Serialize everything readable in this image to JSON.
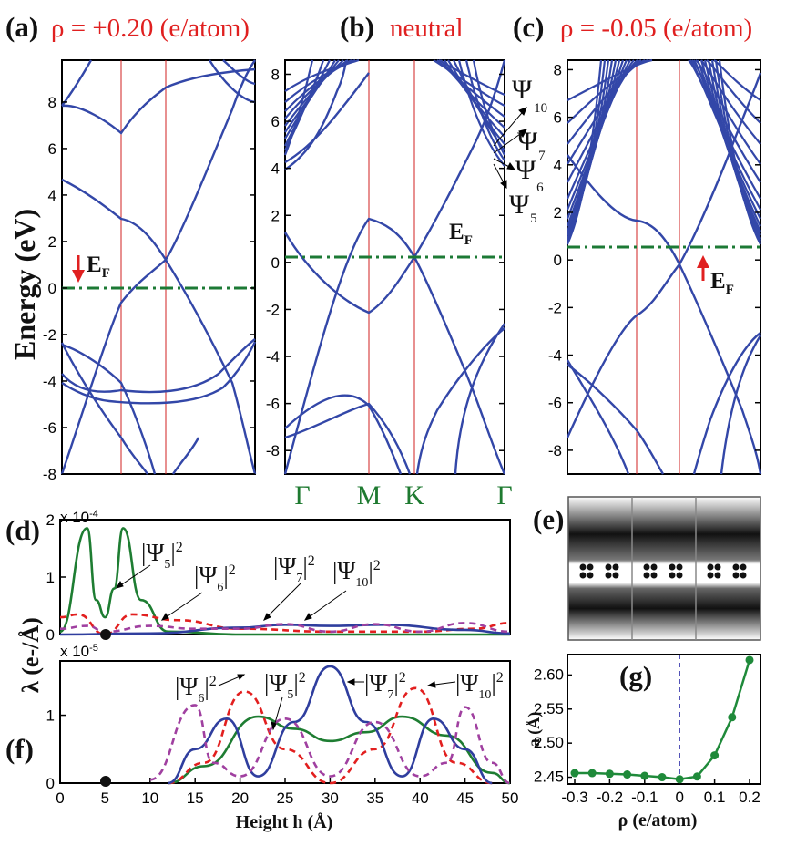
{
  "figure": {
    "panel_a_letter": "(a)",
    "panel_a_condition": "ρ = +0.20 (e/atom)",
    "panel_b_letter": "(b)",
    "panel_b_condition": "neutral",
    "panel_c_letter": "(c)",
    "panel_c_condition": "ρ = -0.05 (e/atom)",
    "panel_d_letter": "(d)",
    "panel_e_letter": "(e)",
    "panel_f_letter": "(f)",
    "panel_g_letter": "(g)",
    "energy_ylabel": "Energy (eV)",
    "lambda_ylabel": "λ (e-/Å)",
    "height_xlabel": "Height h (Å)",
    "rho_xlabel": "ρ (e/atom)",
    "lattice_ylabel": "a (Å)",
    "ef": "E",
    "ef_sub": "F",
    "d_scale_base": "x 10",
    "d_scale_exp": "-4",
    "f_scale_base": "x 10",
    "f_scale_exp": "-5",
    "kpoints": [
      "Γ",
      "M",
      "K",
      "Γ"
    ],
    "psi": "Ψ",
    "psi_subs": [
      "10",
      "7",
      "6",
      "5"
    ],
    "psi_tags": [
      "|Ψ5|2",
      "|Ψ6|2",
      "|Ψ7|2",
      "|Ψ10|2"
    ]
  },
  "chart_data": [
    {
      "type": "line",
      "panel": "a",
      "title": "ρ = +0.20 (e/atom)",
      "ylabel": "Energy (eV)",
      "ylim": [
        -8,
        9.8
      ],
      "yticks": [
        -8,
        -6,
        -4,
        -2,
        0,
        2,
        4,
        6,
        8
      ],
      "fermi_level": 0,
      "series": [
        {
          "values": "electronic bands Γ-M-K-Γ; Dirac point at K ≈ 1.3 eV; bands at M ≈ 3.0, -0.6 eV"
        }
      ]
    },
    {
      "type": "line",
      "panel": "b",
      "title": "neutral",
      "ylabel": "Energy (eV)",
      "ylim": [
        -9,
        8.6
      ],
      "yticks": [
        -8,
        -6,
        -4,
        -2,
        0,
        2,
        4,
        6,
        8
      ],
      "xticklabels": [
        "Γ",
        "M",
        "K",
        "Γ"
      ],
      "fermi_level": 0,
      "series": [
        {
          "values": "Dirac point at K = 0 eV; M points 1.7, -2.4 eV; nearly-free-electron states Ψ5, Ψ6, Ψ7, Ψ10 ≈ 3.4–4.6 eV at Γ"
        }
      ]
    },
    {
      "type": "line",
      "panel": "c",
      "title": "ρ = -0.05 (e/atom)",
      "ylabel": "Energy (eV)",
      "ylim": [
        -9,
        8.4
      ],
      "yticks": [
        -8,
        -6,
        -4,
        -2,
        0,
        2,
        4,
        6,
        8
      ],
      "fermi_level": 0,
      "series": [
        {
          "values": "Dirac point at K ≈ -0.6 eV; dense band bundle above 0 eV at Γ"
        }
      ]
    },
    {
      "type": "line",
      "panel": "d",
      "xlim": [
        0,
        50
      ],
      "ylim": [
        0,
        2
      ],
      "y_scale": "x 10^-4",
      "yticks": [
        0,
        1,
        2
      ],
      "series": [
        {
          "name": "|Ψ5|2",
          "color": "#1e7d32",
          "x": [
            0,
            3,
            4,
            5,
            6,
            7,
            9,
            12,
            20,
            50
          ],
          "values": [
            0.05,
            1.85,
            0.6,
            0.3,
            0.8,
            1.85,
            0.6,
            0.05,
            0,
            0
          ]
        },
        {
          "name": "|Ψ6|2",
          "color": "#e21f1f",
          "x": [
            0,
            2,
            5,
            8,
            13,
            20,
            30,
            40,
            46,
            50
          ],
          "values": [
            0.3,
            0.35,
            0.0,
            0.35,
            0.25,
            0.1,
            0.05,
            0.05,
            0.1,
            0.2
          ]
        },
        {
          "name": "|Ψ7|2",
          "color": "#2f3e9e",
          "x": [
            0,
            10,
            20,
            25,
            30,
            36,
            45,
            50
          ],
          "values": [
            0,
            0.02,
            0.12,
            0.17,
            0.15,
            0.17,
            0.08,
            0.02
          ]
        },
        {
          "name": "|Ψ10|2",
          "color": "#a040a0",
          "x": [
            0,
            3,
            5,
            10,
            15,
            20,
            25,
            30,
            35,
            40,
            45,
            50
          ],
          "values": [
            0.1,
            0.15,
            0.05,
            0.15,
            0.1,
            0.1,
            0.18,
            0.05,
            0.18,
            0.05,
            0.2,
            0.05
          ]
        }
      ]
    },
    {
      "type": "line",
      "panel": "f",
      "xlabel": "Height h (Å)",
      "xlim": [
        0,
        50
      ],
      "ylim": [
        0,
        1.8
      ],
      "y_scale": "x 10^-5",
      "xticks": [
        0,
        5,
        10,
        15,
        20,
        25,
        30,
        35,
        40,
        45,
        50
      ],
      "yticks": [
        0,
        1
      ],
      "series": [
        {
          "name": "|Ψ5|2",
          "color": "#1e7d32",
          "x": [
            12,
            16,
            22,
            26,
            30,
            34,
            38,
            43,
            48,
            50
          ],
          "values": [
            0,
            0.25,
            0.98,
            0.8,
            0.62,
            0.75,
            0.98,
            0.7,
            0.15,
            0
          ]
        },
        {
          "name": "|Ψ6|2",
          "color": "#e21f1f",
          "x": [
            12,
            16,
            20.5,
            25,
            30,
            35,
            39.5,
            44,
            48
          ],
          "values": [
            0,
            0.3,
            1.35,
            0.5,
            0,
            0.5,
            1.4,
            0.3,
            0
          ]
        },
        {
          "name": "|Ψ7|2",
          "color": "#2f3e9e",
          "x": [
            12,
            15,
            18.5,
            22,
            26,
            30,
            34,
            38,
            41.5,
            45,
            48
          ],
          "values": [
            0,
            0.5,
            0.95,
            0.1,
            0.9,
            1.72,
            0.9,
            0.1,
            0.95,
            0.5,
            0
          ]
        },
        {
          "name": "|Ψ10|2",
          "color": "#a040a0",
          "x": [
            10,
            15,
            17,
            20,
            25,
            30,
            35,
            40,
            43,
            45,
            48,
            50
          ],
          "values": [
            0.05,
            1.15,
            0.3,
            0.1,
            0.95,
            0.1,
            0.9,
            0.1,
            0.3,
            1.12,
            0.3,
            0
          ]
        }
      ]
    },
    {
      "type": "scatter",
      "panel": "g",
      "xlabel": "ρ (e/atom)",
      "ylabel": "a (Å)",
      "xlim": [
        -0.3,
        0.2
      ],
      "ylim": [
        2.44,
        2.63
      ],
      "xticks": [
        -0.3,
        -0.2,
        -0.1,
        0,
        0.1,
        0.2
      ],
      "xticklabels": [
        "-0.3",
        "-0.2",
        "-0.1",
        "0",
        "0.1",
        "0.2"
      ],
      "yticks": [
        2.45,
        2.5,
        2.55,
        2.6
      ],
      "yticklabels": [
        "2.45",
        "2.50",
        "2.55",
        "2.60"
      ],
      "series": [
        {
          "color": "#1f8a3a",
          "x": [
            -0.3,
            -0.25,
            -0.2,
            -0.15,
            -0.1,
            -0.05,
            0,
            0.05,
            0.1,
            0.15,
            0.2
          ],
          "values": [
            2.456,
            2.456,
            2.455,
            2.454,
            2.452,
            2.45,
            2.447,
            2.451,
            2.482,
            2.538,
            2.622
          ]
        }
      ]
    }
  ]
}
